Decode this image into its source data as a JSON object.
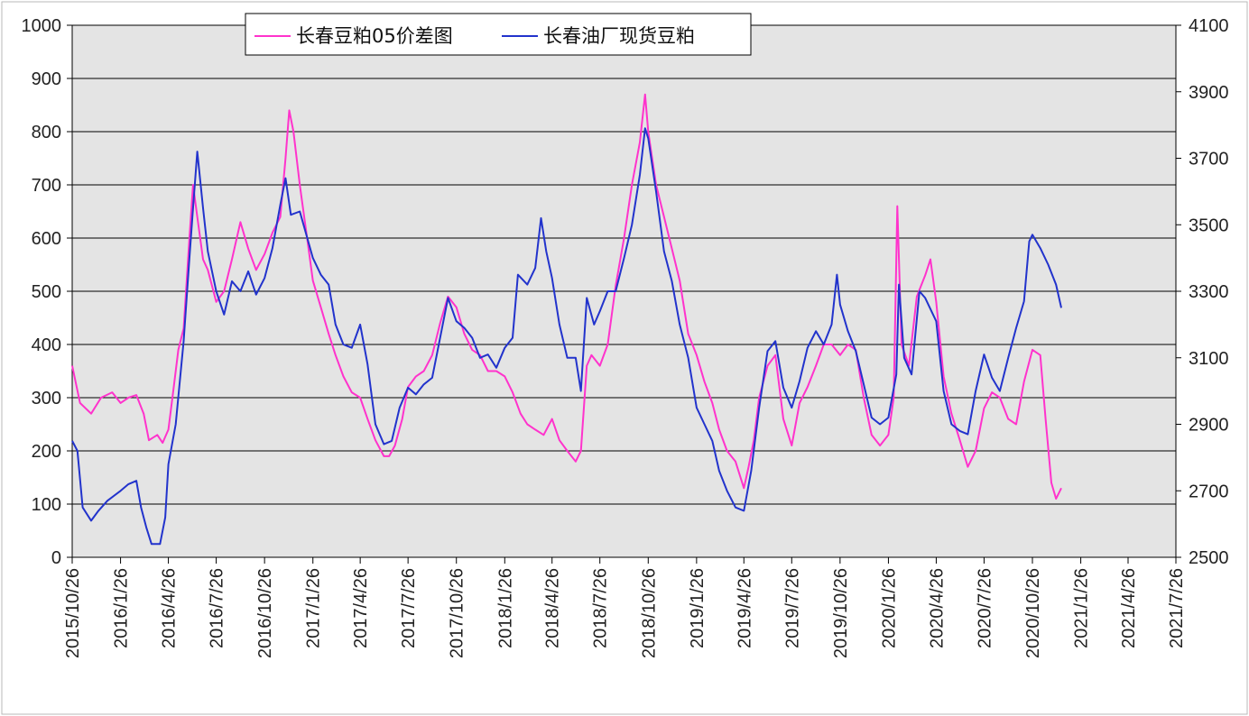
{
  "chart_data": {
    "type": "line",
    "title": "",
    "legend": {
      "placement": "top",
      "entries": [
        {
          "label": "长春豆粕05价差图",
          "color": "#ff33cc"
        },
        {
          "label": "长春油厂现货豆粕",
          "color": "#2233cc"
        }
      ]
    },
    "x_axis": {
      "tick_labels": [
        "2015/10/26",
        "2016/1/26",
        "2016/4/26",
        "2016/7/26",
        "2016/10/26",
        "2017/1/26",
        "2017/4/26",
        "2017/7/26",
        "2017/10/26",
        "2018/1/26",
        "2018/4/26",
        "2018/7/26",
        "2018/10/26",
        "2019/1/26",
        "2019/4/26",
        "2019/7/26",
        "2019/10/26",
        "2020/1/26",
        "2020/4/26",
        "2020/7/26",
        "2020/10/26",
        "2021/1/26",
        "2021/4/26",
        "2021/7/26"
      ],
      "range": [
        "2015/10/26",
        "2021/7/26"
      ]
    },
    "y_axis_left": {
      "range": [
        0,
        1000
      ],
      "ticks": [
        "0",
        "100",
        "200",
        "300",
        "400",
        "500",
        "600",
        "700",
        "800",
        "900",
        "1000"
      ]
    },
    "y_axis_right": {
      "range": [
        2500,
        4100
      ],
      "ticks": [
        "2500",
        "2700",
        "2900",
        "3100",
        "3300",
        "3500",
        "3700",
        "3900",
        "4100"
      ]
    },
    "grid": "horizontal",
    "series": [
      {
        "name": "长春豆粕05价差图",
        "axis": "left",
        "color": "#ff33cc",
        "points": [
          [
            "2015/10/26",
            360
          ],
          [
            "2015/11/10",
            290
          ],
          [
            "2015/12/1",
            270
          ],
          [
            "2015/12/20",
            300
          ],
          [
            "2016/1/10",
            310
          ],
          [
            "2016/1/26",
            290
          ],
          [
            "2016/2/10",
            300
          ],
          [
            "2016/2/25",
            305
          ],
          [
            "2016/3/10",
            270
          ],
          [
            "2016/3/20",
            220
          ],
          [
            "2016/4/5",
            230
          ],
          [
            "2016/4/15",
            215
          ],
          [
            "2016/4/26",
            240
          ],
          [
            "2016/5/5",
            310
          ],
          [
            "2016/5/15",
            390
          ],
          [
            "2016/5/25",
            430
          ],
          [
            "2016/6/5",
            600
          ],
          [
            "2016/6/12",
            700
          ],
          [
            "2016/6/20",
            640
          ],
          [
            "2016/7/1",
            560
          ],
          [
            "2016/7/10",
            540
          ],
          [
            "2016/7/26",
            480
          ],
          [
            "2016/8/10",
            500
          ],
          [
            "2016/8/25",
            560
          ],
          [
            "2016/9/10",
            630
          ],
          [
            "2016/9/25",
            580
          ],
          [
            "2016/10/10",
            540
          ],
          [
            "2016/10/26",
            570
          ],
          [
            "2016/11/10",
            610
          ],
          [
            "2016/11/25",
            640
          ],
          [
            "2016/12/5",
            750
          ],
          [
            "2016/12/12",
            840
          ],
          [
            "2016/12/20",
            800
          ],
          [
            "2017/1/1",
            700
          ],
          [
            "2017/1/15",
            600
          ],
          [
            "2017/1/26",
            520
          ],
          [
            "2017/2/10",
            470
          ],
          [
            "2017/2/25",
            420
          ],
          [
            "2017/3/10",
            380
          ],
          [
            "2017/3/25",
            340
          ],
          [
            "2017/4/10",
            310
          ],
          [
            "2017/4/26",
            300
          ],
          [
            "2017/5/10",
            260
          ],
          [
            "2017/5/25",
            220
          ],
          [
            "2017/6/10",
            190
          ],
          [
            "2017/6/20",
            190
          ],
          [
            "2017/7/1",
            210
          ],
          [
            "2017/7/15",
            260
          ],
          [
            "2017/7/26",
            320
          ],
          [
            "2017/8/10",
            340
          ],
          [
            "2017/8/25",
            350
          ],
          [
            "2017/9/10",
            380
          ],
          [
            "2017/9/25",
            440
          ],
          [
            "2017/10/10",
            490
          ],
          [
            "2017/10/26",
            470
          ],
          [
            "2017/11/10",
            420
          ],
          [
            "2017/11/25",
            390
          ],
          [
            "2017/12/10",
            380
          ],
          [
            "2017/12/25",
            350
          ],
          [
            "2018/1/10",
            350
          ],
          [
            "2018/1/26",
            340
          ],
          [
            "2018/2/10",
            310
          ],
          [
            "2018/2/25",
            270
          ],
          [
            "2018/3/10",
            250
          ],
          [
            "2018/3/25",
            240
          ],
          [
            "2018/4/10",
            230
          ],
          [
            "2018/4/26",
            260
          ],
          [
            "2018/5/10",
            220
          ],
          [
            "2018/5/25",
            200
          ],
          [
            "2018/6/10",
            180
          ],
          [
            "2018/6/20",
            200
          ],
          [
            "2018/7/1",
            360
          ],
          [
            "2018/7/10",
            380
          ],
          [
            "2018/7/26",
            360
          ],
          [
            "2018/8/10",
            400
          ],
          [
            "2018/8/25",
            510
          ],
          [
            "2018/9/10",
            600
          ],
          [
            "2018/9/25",
            700
          ],
          [
            "2018/10/10",
            780
          ],
          [
            "2018/10/20",
            870
          ],
          [
            "2018/10/26",
            800
          ],
          [
            "2018/11/10",
            700
          ],
          [
            "2018/11/25",
            640
          ],
          [
            "2018/12/10",
            580
          ],
          [
            "2018/12/25",
            520
          ],
          [
            "2019/1/10",
            420
          ],
          [
            "2019/1/26",
            380
          ],
          [
            "2019/2/10",
            330
          ],
          [
            "2019/2/25",
            290
          ],
          [
            "2019/3/10",
            240
          ],
          [
            "2019/3/25",
            200
          ],
          [
            "2019/4/10",
            180
          ],
          [
            "2019/4/26",
            130
          ],
          [
            "2019/5/5",
            170
          ],
          [
            "2019/5/15",
            220
          ],
          [
            "2019/5/25",
            300
          ],
          [
            "2019/6/10",
            360
          ],
          [
            "2019/6/25",
            380
          ],
          [
            "2019/7/10",
            260
          ],
          [
            "2019/7/26",
            210
          ],
          [
            "2019/8/10",
            290
          ],
          [
            "2019/8/25",
            320
          ],
          [
            "2019/9/10",
            360
          ],
          [
            "2019/9/25",
            400
          ],
          [
            "2019/10/10",
            400
          ],
          [
            "2019/10/26",
            380
          ],
          [
            "2019/11/10",
            400
          ],
          [
            "2019/11/25",
            390
          ],
          [
            "2019/12/10",
            300
          ],
          [
            "2019/12/25",
            230
          ],
          [
            "2020/1/10",
            210
          ],
          [
            "2020/1/26",
            230
          ],
          [
            "2020/2/5",
            300
          ],
          [
            "2020/2/12",
            660
          ],
          [
            "2020/2/20",
            400
          ],
          [
            "2020/3/5",
            360
          ],
          [
            "2020/3/20",
            490
          ],
          [
            "2020/4/5",
            530
          ],
          [
            "2020/4/15",
            560
          ],
          [
            "2020/4/26",
            480
          ],
          [
            "2020/5/10",
            340
          ],
          [
            "2020/5/25",
            270
          ],
          [
            "2020/6/10",
            220
          ],
          [
            "2020/6/25",
            170
          ],
          [
            "2020/7/10",
            200
          ],
          [
            "2020/7/26",
            280
          ],
          [
            "2020/8/10",
            310
          ],
          [
            "2020/8/25",
            300
          ],
          [
            "2020/9/10",
            260
          ],
          [
            "2020/9/25",
            250
          ],
          [
            "2020/10/10",
            330
          ],
          [
            "2020/10/26",
            390
          ],
          [
            "2020/11/10",
            380
          ],
          [
            "2020/11/20",
            260
          ],
          [
            "2020/12/1",
            140
          ],
          [
            "2020/12/10",
            110
          ],
          [
            "2020/12/20",
            130
          ]
        ]
      },
      {
        "name": "长春油厂现货豆粕",
        "axis": "right",
        "color": "#2233cc",
        "points": [
          [
            "2015/10/26",
            2850
          ],
          [
            "2015/11/5",
            2820
          ],
          [
            "2015/11/15",
            2650
          ],
          [
            "2015/12/1",
            2610
          ],
          [
            "2015/12/15",
            2640
          ],
          [
            "2016/1/1",
            2670
          ],
          [
            "2016/1/26",
            2700
          ],
          [
            "2016/2/10",
            2720
          ],
          [
            "2016/2/25",
            2730
          ],
          [
            "2016/3/5",
            2650
          ],
          [
            "2016/3/15",
            2590
          ],
          [
            "2016/3/25",
            2540
          ],
          [
            "2016/4/10",
            2540
          ],
          [
            "2016/4/20",
            2620
          ],
          [
            "2016/4/26",
            2780
          ],
          [
            "2016/5/10",
            2900
          ],
          [
            "2016/5/25",
            3150
          ],
          [
            "2016/6/5",
            3400
          ],
          [
            "2016/6/12",
            3550
          ],
          [
            "2016/6/20",
            3720
          ],
          [
            "2016/7/1",
            3550
          ],
          [
            "2016/7/10",
            3420
          ],
          [
            "2016/7/26",
            3300
          ],
          [
            "2016/8/10",
            3230
          ],
          [
            "2016/8/25",
            3330
          ],
          [
            "2016/9/10",
            3300
          ],
          [
            "2016/9/25",
            3360
          ],
          [
            "2016/10/10",
            3290
          ],
          [
            "2016/10/26",
            3340
          ],
          [
            "2016/11/10",
            3430
          ],
          [
            "2016/11/25",
            3560
          ],
          [
            "2016/12/5",
            3640
          ],
          [
            "2016/12/15",
            3530
          ],
          [
            "2017/1/1",
            3540
          ],
          [
            "2017/1/26",
            3400
          ],
          [
            "2017/2/10",
            3350
          ],
          [
            "2017/2/25",
            3320
          ],
          [
            "2017/3/10",
            3200
          ],
          [
            "2017/3/25",
            3140
          ],
          [
            "2017/4/10",
            3130
          ],
          [
            "2017/4/26",
            3200
          ],
          [
            "2017/5/10",
            3080
          ],
          [
            "2017/5/25",
            2900
          ],
          [
            "2017/6/10",
            2840
          ],
          [
            "2017/6/25",
            2850
          ],
          [
            "2017/7/10",
            2950
          ],
          [
            "2017/7/26",
            3010
          ],
          [
            "2017/8/10",
            2990
          ],
          [
            "2017/8/25",
            3020
          ],
          [
            "2017/9/10",
            3040
          ],
          [
            "2017/9/25",
            3160
          ],
          [
            "2017/10/10",
            3280
          ],
          [
            "2017/10/26",
            3210
          ],
          [
            "2017/11/10",
            3190
          ],
          [
            "2017/11/25",
            3160
          ],
          [
            "2017/12/10",
            3100
          ],
          [
            "2017/12/25",
            3110
          ],
          [
            "2018/1/10",
            3070
          ],
          [
            "2018/1/26",
            3130
          ],
          [
            "2018/2/10",
            3160
          ],
          [
            "2018/2/20",
            3350
          ],
          [
            "2018/3/10",
            3320
          ],
          [
            "2018/3/25",
            3370
          ],
          [
            "2018/4/5",
            3520
          ],
          [
            "2018/4/15",
            3420
          ],
          [
            "2018/4/26",
            3340
          ],
          [
            "2018/5/10",
            3200
          ],
          [
            "2018/5/25",
            3100
          ],
          [
            "2018/6/10",
            3100
          ],
          [
            "2018/6/20",
            3000
          ],
          [
            "2018/7/1",
            3280
          ],
          [
            "2018/7/15",
            3200
          ],
          [
            "2018/7/26",
            3240
          ],
          [
            "2018/8/10",
            3300
          ],
          [
            "2018/8/25",
            3300
          ],
          [
            "2018/9/10",
            3400
          ],
          [
            "2018/9/25",
            3500
          ],
          [
            "2018/10/10",
            3650
          ],
          [
            "2018/10/20",
            3790
          ],
          [
            "2018/10/26",
            3760
          ],
          [
            "2018/11/10",
            3600
          ],
          [
            "2018/11/25",
            3420
          ],
          [
            "2018/12/10",
            3330
          ],
          [
            "2018/12/25",
            3200
          ],
          [
            "2019/1/10",
            3100
          ],
          [
            "2019/1/26",
            2950
          ],
          [
            "2019/2/10",
            2900
          ],
          [
            "2019/2/25",
            2850
          ],
          [
            "2019/3/10",
            2760
          ],
          [
            "2019/3/25",
            2700
          ],
          [
            "2019/4/10",
            2650
          ],
          [
            "2019/4/26",
            2640
          ],
          [
            "2019/5/10",
            2760
          ],
          [
            "2019/5/25",
            2950
          ],
          [
            "2019/6/10",
            3120
          ],
          [
            "2019/6/25",
            3150
          ],
          [
            "2019/7/10",
            3010
          ],
          [
            "2019/7/26",
            2950
          ],
          [
            "2019/8/10",
            3030
          ],
          [
            "2019/8/25",
            3130
          ],
          [
            "2019/9/10",
            3180
          ],
          [
            "2019/9/25",
            3140
          ],
          [
            "2019/10/10",
            3200
          ],
          [
            "2019/10/20",
            3350
          ],
          [
            "2019/10/26",
            3260
          ],
          [
            "2019/11/10",
            3180
          ],
          [
            "2019/11/25",
            3120
          ],
          [
            "2019/12/10",
            3020
          ],
          [
            "2019/12/25",
            2920
          ],
          [
            "2020/1/10",
            2900
          ],
          [
            "2020/1/26",
            2920
          ],
          [
            "2020/2/10",
            3050
          ],
          [
            "2020/2/15",
            3320
          ],
          [
            "2020/2/25",
            3100
          ],
          [
            "2020/3/10",
            3050
          ],
          [
            "2020/3/25",
            3300
          ],
          [
            "2020/4/5",
            3280
          ],
          [
            "2020/4/26",
            3210
          ],
          [
            "2020/5/10",
            3000
          ],
          [
            "2020/5/25",
            2900
          ],
          [
            "2020/6/10",
            2880
          ],
          [
            "2020/6/25",
            2870
          ],
          [
            "2020/7/10",
            3000
          ],
          [
            "2020/7/26",
            3110
          ],
          [
            "2020/8/10",
            3040
          ],
          [
            "2020/8/25",
            3000
          ],
          [
            "2020/9/10",
            3100
          ],
          [
            "2020/9/25",
            3190
          ],
          [
            "2020/10/10",
            3270
          ],
          [
            "2020/10/20",
            3450
          ],
          [
            "2020/10/26",
            3470
          ],
          [
            "2020/11/10",
            3430
          ],
          [
            "2020/11/25",
            3380
          ],
          [
            "2020/12/10",
            3320
          ],
          [
            "2020/12/20",
            3250
          ]
        ]
      }
    ]
  }
}
